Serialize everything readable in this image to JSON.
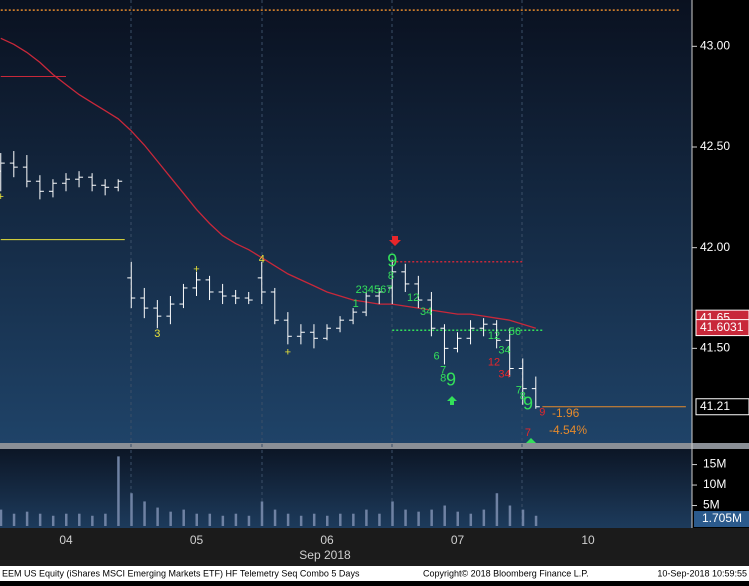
{
  "chart_data": {
    "type": "ohlc",
    "x_label": "Sep 2018",
    "categories": [
      null,
      null,
      null,
      null,
      null,
      "04",
      null,
      null,
      null,
      null,
      null,
      null,
      null,
      null,
      null,
      "05",
      null,
      null,
      null,
      null,
      null,
      null,
      null,
      null,
      null,
      "06",
      null,
      null,
      null,
      null,
      null,
      null,
      null,
      null,
      null,
      "07",
      null,
      null,
      null,
      null,
      null,
      null,
      null,
      null,
      null,
      "10",
      null,
      null,
      null,
      null,
      null,
      null,
      null
    ],
    "bar_color": "#ffffff",
    "open": [
      42.38,
      42.42,
      42.4,
      42.33,
      42.28,
      42.32,
      42.34,
      42.35,
      42.31,
      42.3,
      41.85,
      41.75,
      41.7,
      41.66,
      41.72,
      41.8,
      41.84,
      41.78,
      41.76,
      41.75,
      41.85,
      41.78,
      41.64,
      41.56,
      41.58,
      41.55,
      41.6,
      41.64,
      41.68,
      41.76,
      41.8,
      41.88,
      41.82,
      41.74,
      41.6,
      41.5,
      41.55,
      41.6,
      41.62,
      41.54,
      41.4,
      41.3,
      null,
      null,
      null,
      null,
      null,
      null,
      null,
      null,
      null,
      null,
      null
    ],
    "high": [
      42.47,
      42.48,
      42.46,
      42.36,
      42.34,
      42.37,
      42.38,
      42.37,
      42.34,
      42.34,
      41.93,
      41.8,
      41.74,
      41.76,
      41.82,
      41.88,
      41.86,
      41.82,
      41.79,
      41.78,
      41.93,
      41.8,
      41.68,
      41.62,
      41.62,
      41.62,
      41.66,
      41.7,
      41.78,
      41.8,
      41.94,
      41.92,
      41.86,
      41.78,
      41.62,
      41.58,
      41.64,
      41.65,
      41.64,
      41.6,
      41.45,
      41.36,
      null,
      null,
      null,
      null,
      null,
      null,
      null,
      null,
      null,
      null,
      null
    ],
    "low": [
      42.28,
      42.35,
      42.3,
      42.24,
      42.25,
      42.28,
      42.3,
      42.28,
      42.26,
      42.28,
      41.7,
      41.65,
      41.6,
      41.62,
      41.7,
      41.76,
      41.74,
      41.72,
      41.72,
      41.72,
      41.72,
      41.62,
      41.52,
      41.52,
      41.5,
      41.54,
      41.58,
      41.62,
      41.66,
      41.72,
      41.72,
      41.78,
      41.7,
      41.56,
      41.42,
      41.48,
      41.52,
      41.56,
      41.5,
      41.36,
      41.22,
      41.2,
      null,
      null,
      null,
      null,
      null,
      null,
      null,
      null,
      null,
      null,
      null
    ],
    "close": [
      42.42,
      42.4,
      42.33,
      42.28,
      42.32,
      42.34,
      42.35,
      42.31,
      42.3,
      42.33,
      41.75,
      41.7,
      41.66,
      41.72,
      41.8,
      41.84,
      41.78,
      41.76,
      41.75,
      41.74,
      41.78,
      41.64,
      41.56,
      41.58,
      41.55,
      41.6,
      41.64,
      41.68,
      41.76,
      41.78,
      41.88,
      41.82,
      41.74,
      41.6,
      41.5,
      41.55,
      41.6,
      41.62,
      41.54,
      41.4,
      41.3,
      41.21,
      null,
      null,
      null,
      null,
      null,
      null,
      null,
      null,
      null,
      null,
      null
    ],
    "ma": {
      "color": "#c8283a",
      "values": [
        43.04,
        43.01,
        42.97,
        42.92,
        42.86,
        42.81,
        42.76,
        42.72,
        42.68,
        42.64,
        42.58,
        42.51,
        42.43,
        42.35,
        42.27,
        42.19,
        42.12,
        42.06,
        42.02,
        41.99,
        41.95,
        41.91,
        41.87,
        41.84,
        41.81,
        41.78,
        41.76,
        41.74,
        41.73,
        41.72,
        41.72,
        41.71,
        41.7,
        41.69,
        41.68,
        41.67,
        41.67,
        41.66,
        41.65,
        41.64,
        41.62,
        41.6,
        null,
        null,
        null,
        null,
        null,
        null,
        null,
        null,
        null,
        null,
        null
      ]
    },
    "ylim": [
      41.03,
      43.23
    ],
    "yticks": [
      {
        "value": 43.0,
        "label": "43.00"
      },
      {
        "value": 42.5,
        "label": "42.50"
      },
      {
        "value": 42.0,
        "label": "42.00"
      },
      {
        "value": 41.5,
        "label": "41.50"
      }
    ],
    "levels": [
      {
        "value": 43.18,
        "color": "#e58a2c",
        "dash": true,
        "from": 0,
        "to": 52
      },
      {
        "value": 42.85,
        "color": "#c8283a",
        "dash": false,
        "from": 0,
        "to": 5
      },
      {
        "value": 42.04,
        "color": "#e8e23a",
        "dash": false,
        "from": 0,
        "to": 9.5
      },
      {
        "value": 41.93,
        "color": "#c8283a",
        "dash": true,
        "from": 30,
        "to": 40
      },
      {
        "value": 41.59,
        "color": "#33e05a",
        "dash": true,
        "from": 30,
        "to": 41.5
      },
      {
        "value": 41.21,
        "color": "#e58a2c",
        "dash": false,
        "from": 41.5,
        "to": 52.5
      }
    ],
    "price_labels": [
      {
        "value": 41.65,
        "label": "41.65",
        "fill": "#c8283a",
        "text_color": "#ffffff"
      },
      {
        "value": 41.6031,
        "label": "41.6031",
        "fill": "#c8283a",
        "text_color": "#ffffff"
      },
      {
        "value": 41.21,
        "label": "41.21",
        "fill": "#000000",
        "text_color": "#ffffff"
      }
    ],
    "annotations": [
      {
        "text": "+",
        "x": 0,
        "y": 42.25,
        "color": "#e8e23a"
      },
      {
        "text": "3",
        "x": 12,
        "y": 41.57,
        "color": "#e8e23a"
      },
      {
        "text": "+",
        "x": 15,
        "y": 41.89,
        "color": "#e8e23a"
      },
      {
        "text": "4",
        "x": 20,
        "y": 41.94,
        "color": "#e8e23a"
      },
      {
        "text": "+",
        "x": 22,
        "y": 41.48,
        "color": "#e8e23a"
      },
      {
        "text": "1",
        "x": 27.2,
        "y": 41.72,
        "color": "#33e05a"
      },
      {
        "text": "234567",
        "x": 28.6,
        "y": 41.79,
        "color": "#33e05a"
      },
      {
        "text": "8",
        "x": 29.9,
        "y": 41.86,
        "color": "#33e05a"
      },
      {
        "text": "9",
        "x": 30,
        "y": 41.93,
        "color": "#33e05a",
        "big": true
      },
      {
        "text": "12",
        "x": 31.6,
        "y": 41.75,
        "color": "#33e05a"
      },
      {
        "text": "34",
        "x": 32.6,
        "y": 41.68,
        "color": "#33e05a"
      },
      {
        "text": "6",
        "x": 33.4,
        "y": 41.46,
        "color": "#33e05a"
      },
      {
        "text": "7",
        "x": 33.9,
        "y": 41.39,
        "color": "#33e05a"
      },
      {
        "text": "8",
        "x": 33.9,
        "y": 41.35,
        "color": "#33e05a"
      },
      {
        "text": "9",
        "x": 34.5,
        "y": 41.34,
        "color": "#33e05a",
        "big": true
      },
      {
        "text": "12",
        "x": 37.8,
        "y": 41.56,
        "color": "#33e05a"
      },
      {
        "text": "56",
        "x": 39.4,
        "y": 41.58,
        "color": "#33e05a"
      },
      {
        "text": "34",
        "x": 38.6,
        "y": 41.49,
        "color": "#33e05a"
      },
      {
        "text": "12",
        "x": 37.8,
        "y": 41.43,
        "color": "#e8262a"
      },
      {
        "text": "34",
        "x": 38.6,
        "y": 41.37,
        "color": "#e8262a"
      },
      {
        "text": "7",
        "x": 39.7,
        "y": 41.29,
        "color": "#33e05a"
      },
      {
        "text": "8",
        "x": 40.0,
        "y": 41.26,
        "color": "#33e05a"
      },
      {
        "text": "9",
        "x": 40.4,
        "y": 41.22,
        "color": "#33e05a",
        "big": true
      },
      {
        "text": "9",
        "x": 41.5,
        "y": 41.18,
        "color": "#e8262a"
      },
      {
        "text": "7",
        "x": 40.4,
        "y": 41.08,
        "color": "#e8262a"
      }
    ],
    "change": [
      -1.96,
      {
        "value": -4.54,
        "label": "-4.54%"
      }
    ],
    "volume": {
      "type": "bar",
      "color": "#6f82a3",
      "values": [
        4,
        3,
        3.5,
        3,
        2.5,
        3,
        3,
        2.5,
        3,
        17,
        8,
        6,
        4.5,
        3.5,
        4,
        3,
        3,
        2.5,
        3,
        2.5,
        6,
        4,
        3,
        2.5,
        3,
        2.5,
        3,
        3,
        4,
        3,
        6,
        4,
        3.5,
        4,
        5,
        3.5,
        3,
        4,
        8,
        5,
        4,
        2.5,
        null,
        null,
        null,
        null,
        null,
        null,
        null,
        null,
        null,
        null,
        null
      ],
      "ylim": [
        0,
        18.8
      ],
      "yticks": [
        {
          "value": 15,
          "label": "15M"
        },
        {
          "value": 10,
          "label": "10M"
        },
        {
          "value": 5,
          "label": "5M"
        }
      ],
      "last": {
        "value": 1.705,
        "label": "1.705M"
      }
    }
  },
  "footer": {
    "security": "EEM US Equity (iShares MSCI Emerging Markets ETF) HF Telemetry Seq Combo 5 Days",
    "copyright": "Copyright© 2018 Bloomberg Finance L.P.",
    "timestamp": "10-Sep-2018 10:59:55"
  }
}
